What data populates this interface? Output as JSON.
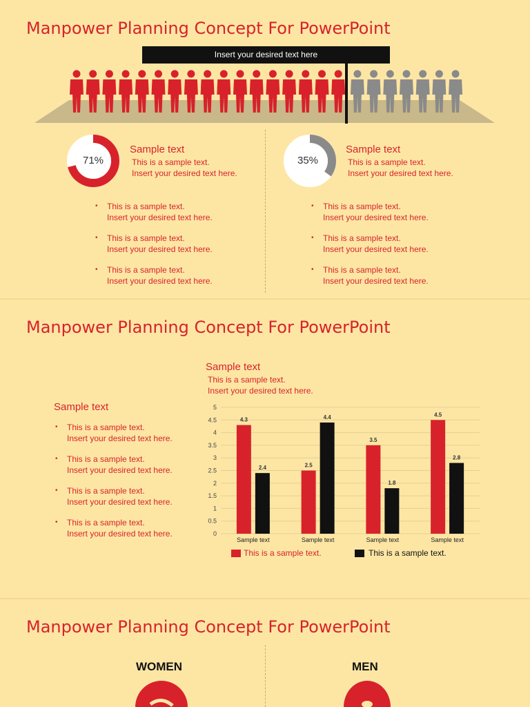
{
  "slide1": {
    "title": "Manpower Planning Concept For PowerPoint",
    "banner": "Insert your desired text here",
    "people": {
      "red_count": 17,
      "gray_count": 7,
      "red_color": "#d8222b",
      "gray_color": "#8a8a8a",
      "icon": "person-silhouette-icon"
    },
    "left": {
      "percent_label": "71%",
      "percent_value": 0.71,
      "heading": "Sample text",
      "desc": [
        "This is a sample text.",
        "Insert your desired text here."
      ],
      "bullets": [
        [
          "This is a sample text.",
          "Insert your desired text here."
        ],
        [
          "This is a sample text.",
          "Insert your desired text here."
        ],
        [
          "This is a sample text.",
          "Insert your desired text here."
        ]
      ]
    },
    "right": {
      "percent_label": "35%",
      "percent_value": 0.35,
      "heading": "Sample text",
      "desc": [
        "This is a sample text.",
        "Insert your desired text here."
      ],
      "bullets": [
        [
          "This is a sample text.",
          "Insert your desired text here."
        ],
        [
          "This is a sample text.",
          "Insert your desired text here."
        ],
        [
          "This is a sample text.",
          "Insert your desired text here."
        ]
      ]
    }
  },
  "slide2": {
    "title": "Manpower Planning Concept For PowerPoint",
    "chart_heading": "Sample text",
    "chart_desc": [
      "This is a sample text.",
      "Insert your desired text here."
    ],
    "side_heading": "Sample text",
    "side_bullets": [
      [
        "This is a sample text.",
        "Insert your desired text here."
      ],
      [
        "This is a sample text.",
        "Insert your desired text here."
      ],
      [
        "This is a sample text.",
        "Insert your desired text here."
      ],
      [
        "This is a sample text.",
        "Insert your desired text here."
      ]
    ]
  },
  "chart_data": {
    "type": "bar",
    "categories": [
      "Sample text",
      "Sample text",
      "Sample text",
      "Sample text"
    ],
    "series": [
      {
        "name": "This is a sample text.",
        "color": "#d8222b",
        "values": [
          4.3,
          2.5,
          3.5,
          4.5
        ]
      },
      {
        "name": "This is a sample text.",
        "color": "#111111",
        "values": [
          2.4,
          4.4,
          1.8,
          2.8
        ]
      }
    ],
    "ylim": [
      0,
      5
    ],
    "yticks": [
      "0",
      "0.5",
      "1",
      "1.5",
      "2",
      "2.5",
      "3",
      "3.5",
      "4",
      "4.5",
      "5"
    ],
    "grid": true,
    "legend": "bottom"
  },
  "slide3": {
    "title": "Manpower Planning Concept For PowerPoint",
    "women_label": "WOMEN",
    "men_label": "MEN"
  }
}
